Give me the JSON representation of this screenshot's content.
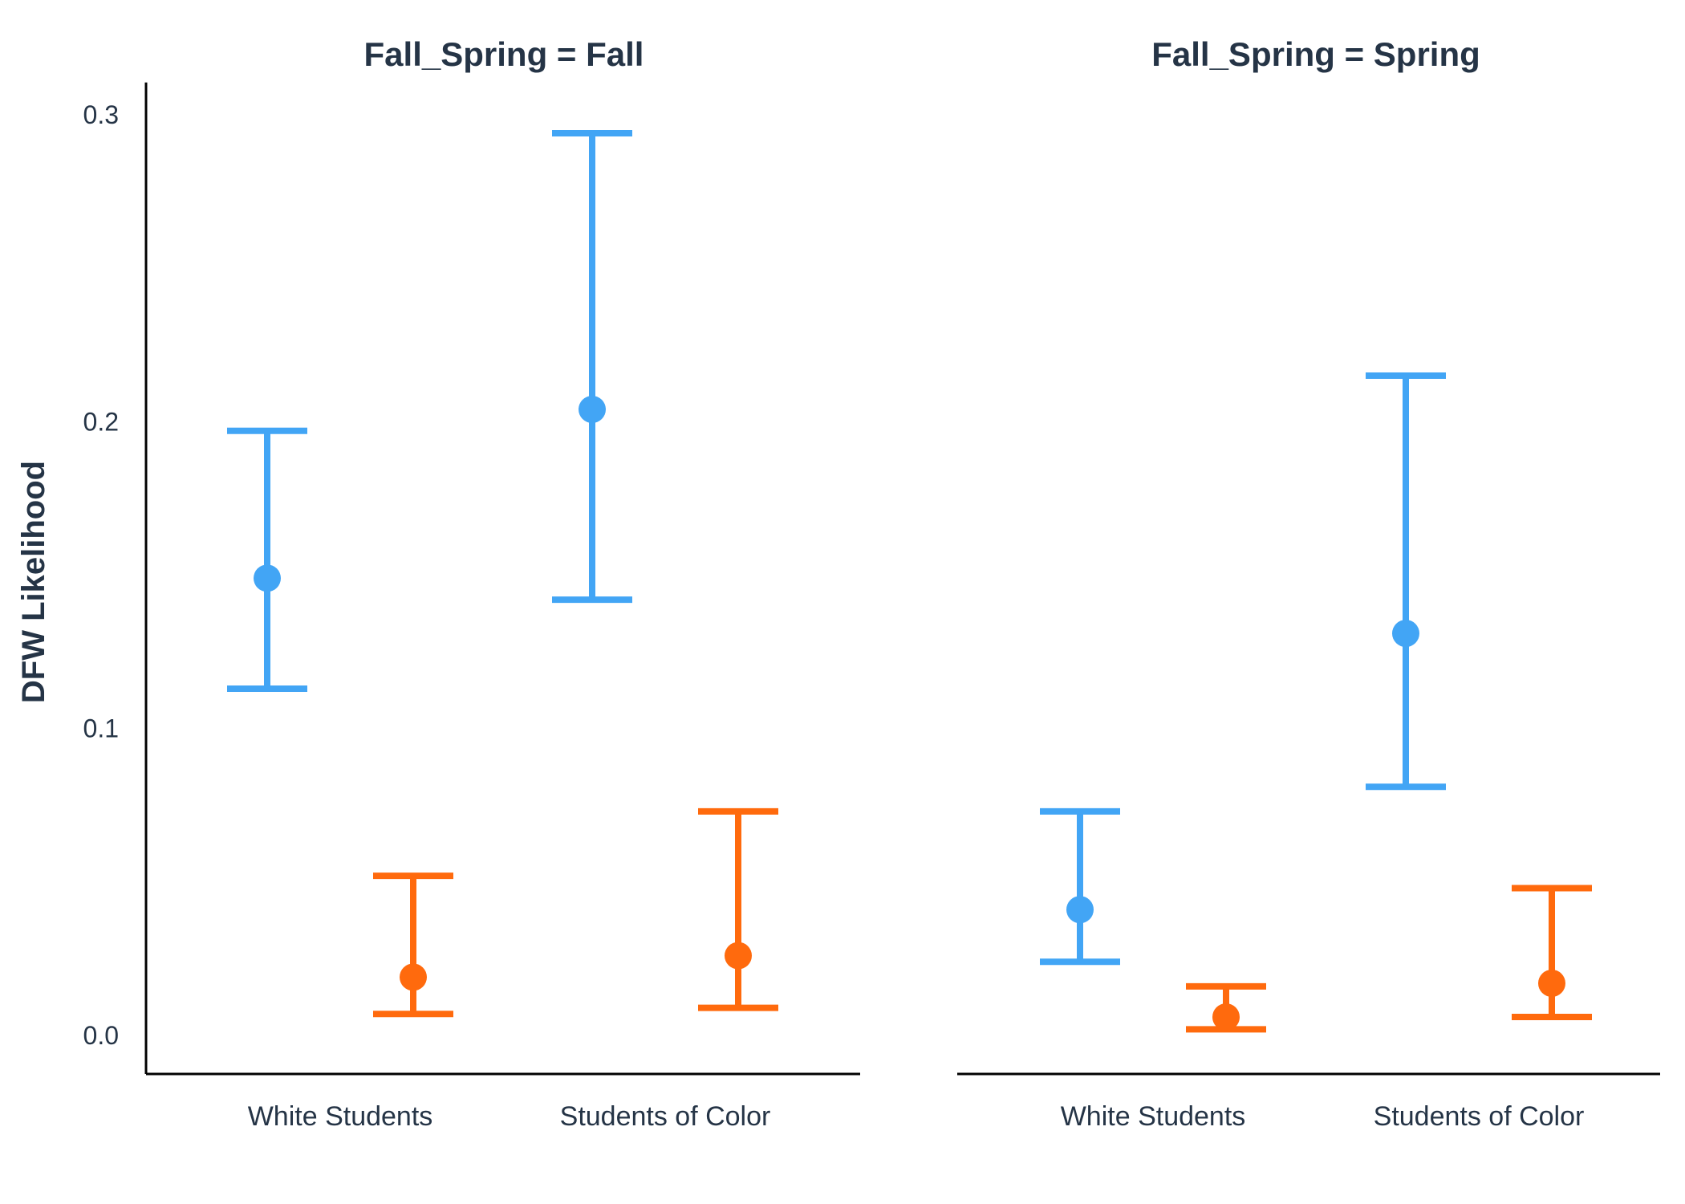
{
  "chart_data": {
    "type": "scatter",
    "ylabel": "DFW Likelihood",
    "xlabel": "",
    "ylim": [
      -0.012,
      0.31
    ],
    "yticks": [
      0.0,
      0.1,
      0.2,
      0.3
    ],
    "ytick_labels": [
      "0.0",
      "0.1",
      "0.2",
      "0.3"
    ],
    "grid": false,
    "categories": [
      "White Students",
      "Students of Color"
    ],
    "colors": [
      "#42a5f5",
      "#ff6a0d"
    ],
    "facets": [
      {
        "title": "Fall_Spring = Fall",
        "series": [
          {
            "values": [
              0.149,
              0.204
            ],
            "lower": [
              0.113,
              0.142
            ],
            "upper": [
              0.197,
              0.294
            ]
          },
          {
            "values": [
              0.019,
              0.026
            ],
            "lower": [
              0.007,
              0.009
            ],
            "upper": [
              0.052,
              0.073
            ]
          }
        ]
      },
      {
        "title": "Fall_Spring = Spring",
        "series": [
          {
            "values": [
              0.041,
              0.131
            ],
            "lower": [
              0.024,
              0.081
            ],
            "upper": [
              0.073,
              0.215
            ]
          },
          {
            "values": [
              0.006,
              0.017
            ],
            "lower": [
              0.002,
              0.006
            ],
            "upper": [
              0.016,
              0.048
            ]
          }
        ]
      }
    ]
  }
}
